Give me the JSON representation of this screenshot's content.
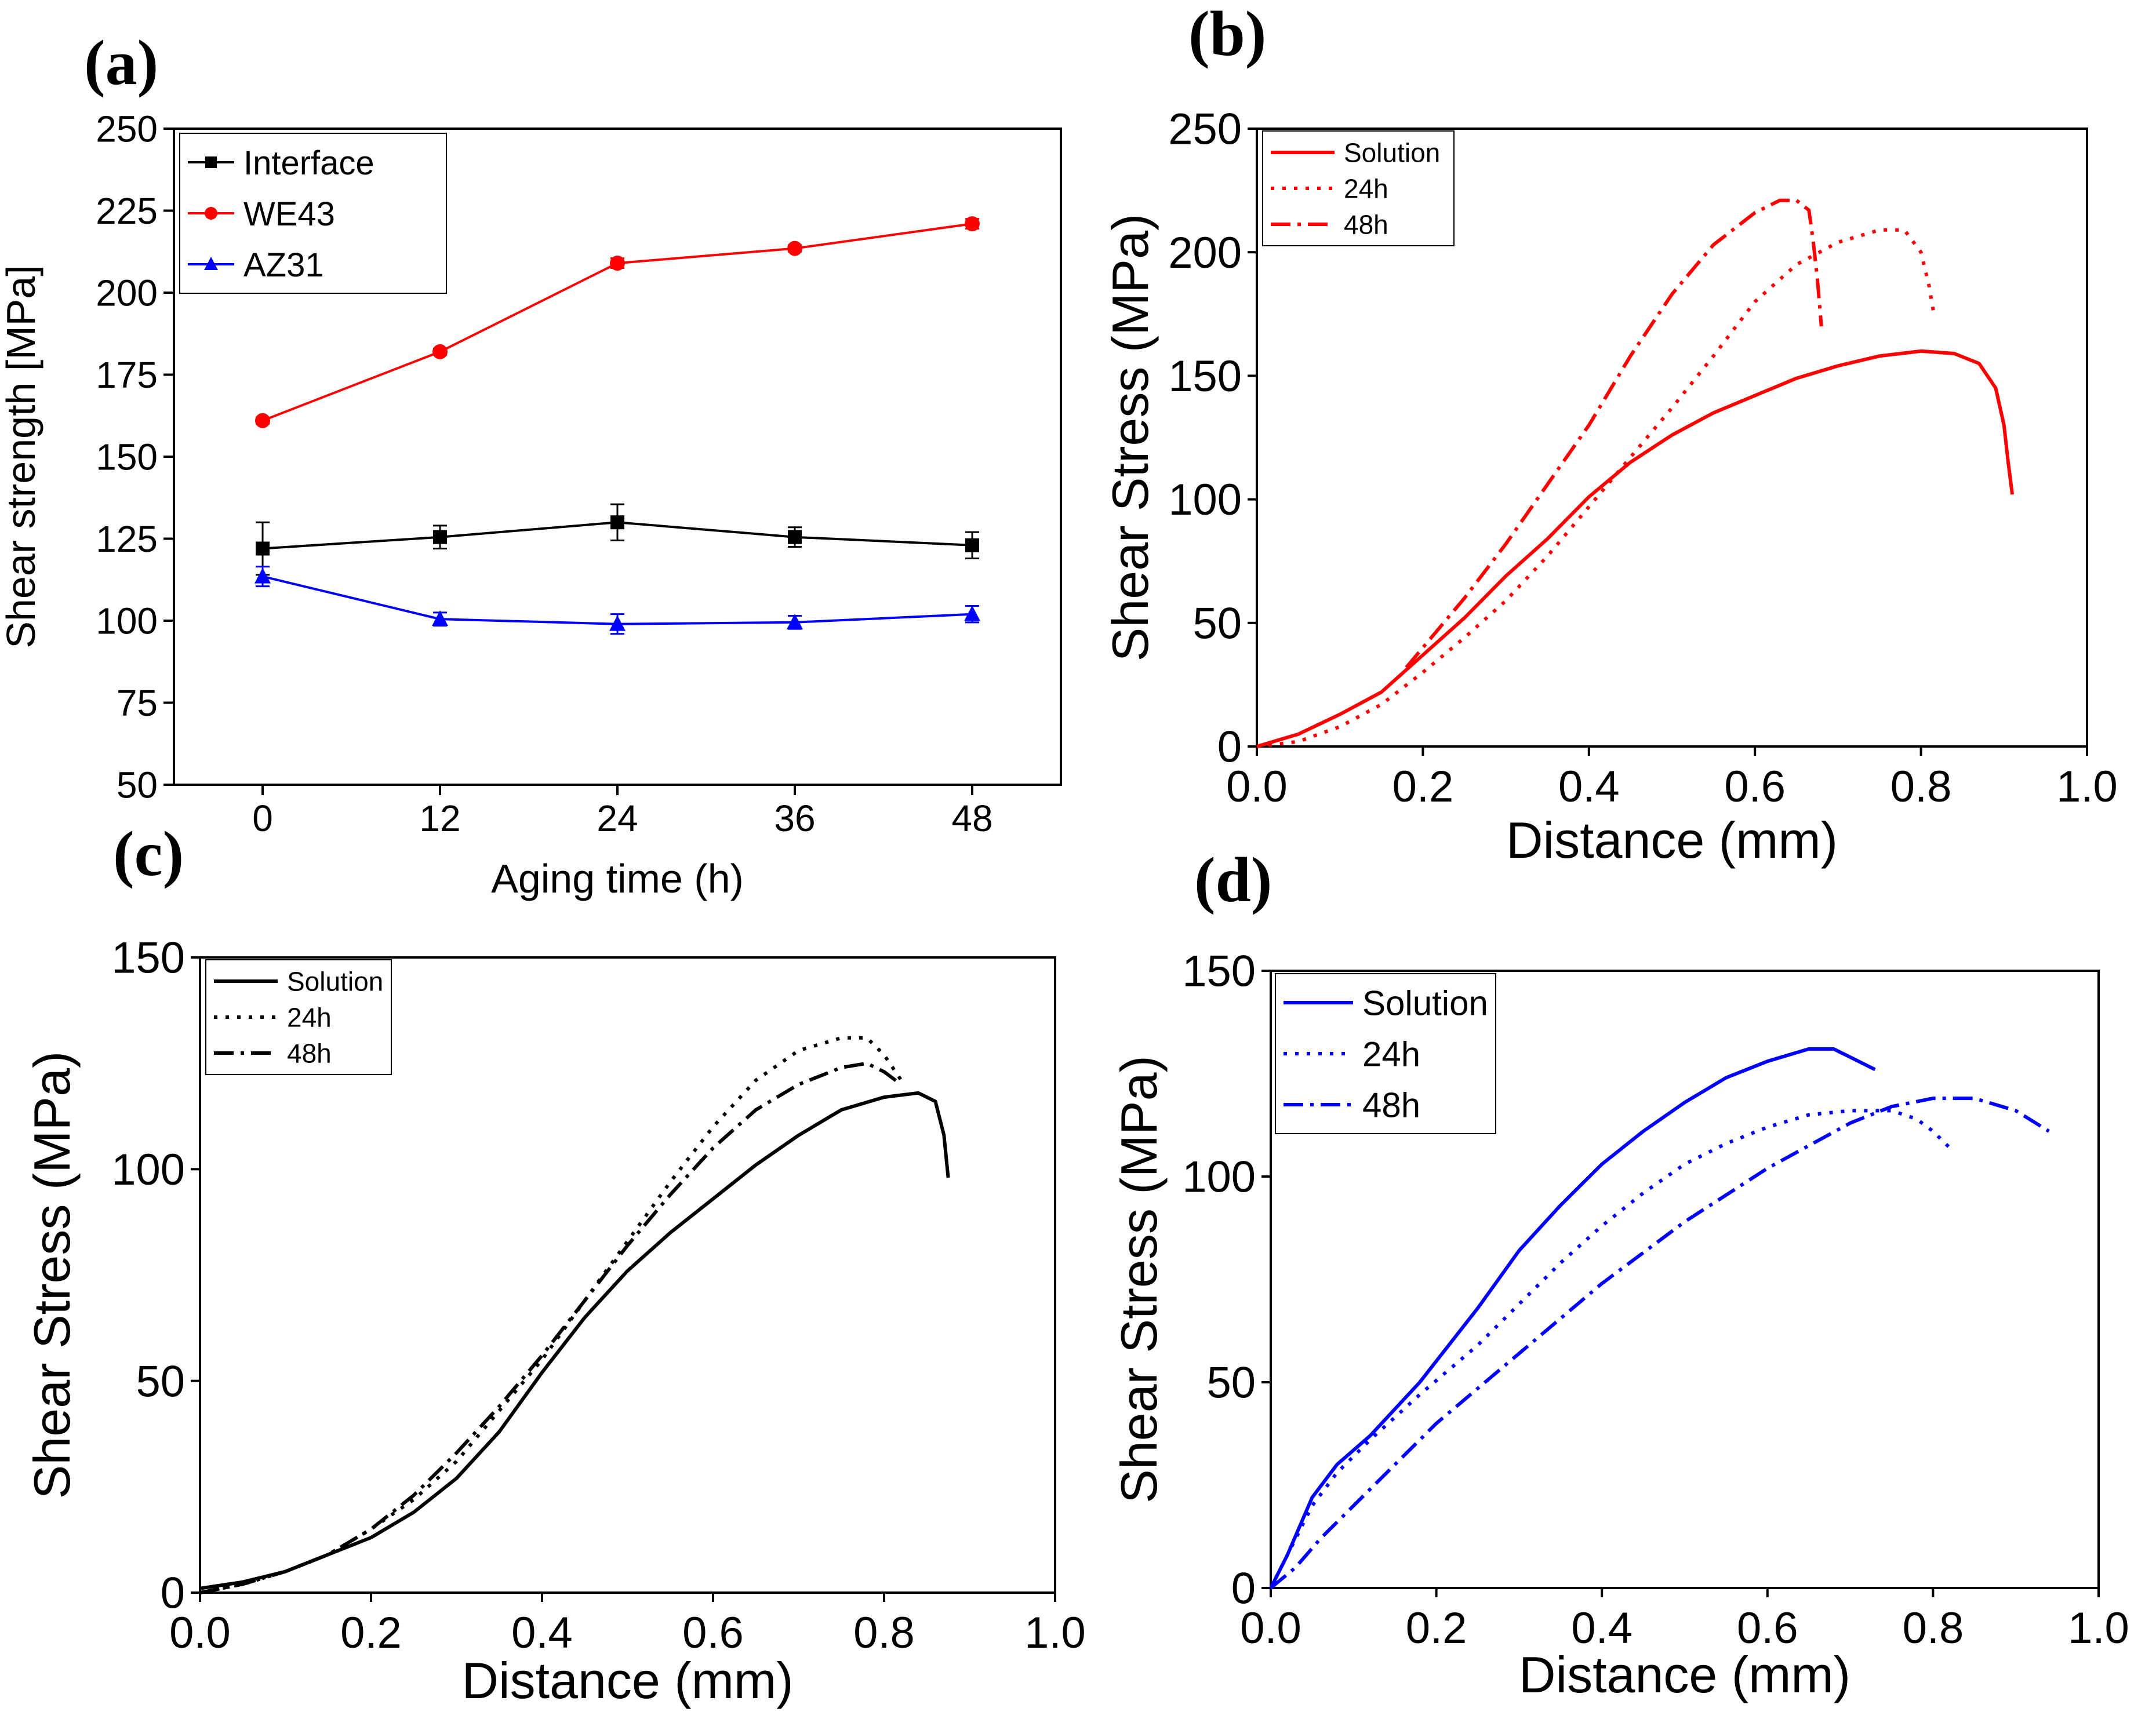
{
  "chart_data": [
    {
      "panel": "(a)",
      "type": "line",
      "xlabel": "Aging time (h)",
      "ylabel": "Shear strength  [MPa]",
      "xlim": [
        -6,
        54
      ],
      "ylim": [
        50,
        250
      ],
      "xticks": [
        0,
        12,
        24,
        36,
        48
      ],
      "xtick_labels": [
        "0",
        "12",
        "24",
        "36",
        "48"
      ],
      "yticks": [
        50,
        75,
        100,
        125,
        150,
        175,
        200,
        225,
        250
      ],
      "ytick_labels": [
        "50",
        "75",
        "100",
        "125",
        "150",
        "175",
        "200",
        "225",
        "250"
      ],
      "legend_position": "top-left",
      "series": [
        {
          "name": "Interface",
          "color": "#000000",
          "marker": "square",
          "x": [
            0,
            12,
            24,
            36,
            48
          ],
          "y": [
            122,
            125.5,
            130,
            125.5,
            123
          ],
          "err": [
            8,
            3.5,
            5.5,
            3,
            4
          ]
        },
        {
          "name": "WE43",
          "color": "#ff0000",
          "marker": "circle",
          "x": [
            0,
            12,
            24,
            36,
            48
          ],
          "y": [
            161,
            182,
            209,
            213.5,
            221
          ],
          "err": [
            1,
            1,
            1.5,
            1,
            1.5
          ]
        },
        {
          "name": "AZ31",
          "color": "#0000ff",
          "marker": "triangle",
          "x": [
            0,
            12,
            24,
            36,
            48
          ],
          "y": [
            113.5,
            100.5,
            99,
            99.5,
            102
          ],
          "err": [
            3,
            2,
            3,
            2,
            2.5
          ]
        }
      ]
    },
    {
      "panel": "(b)",
      "type": "line",
      "xlabel": "Distance (mm)",
      "ylabel": "Shear Stress (MPa)",
      "xlim": [
        0,
        1.0
      ],
      "ylim": [
        0,
        250
      ],
      "xticks": [
        0,
        0.2,
        0.4,
        0.6,
        0.8,
        1.0
      ],
      "xtick_labels": [
        "0.0",
        "0.2",
        "0.4",
        "0.6",
        "0.8",
        "1.0"
      ],
      "yticks": [
        0,
        50,
        100,
        150,
        200,
        250
      ],
      "ytick_labels": [
        "0",
        "50",
        "100",
        "150",
        "200",
        "250"
      ],
      "legend_position": "top-left",
      "series": [
        {
          "name": "Solution",
          "color": "#ff0000",
          "dash": "solid",
          "points": [
            [
              0,
              0
            ],
            [
              0.05,
              5
            ],
            [
              0.1,
              13
            ],
            [
              0.15,
              22
            ],
            [
              0.2,
              37
            ],
            [
              0.25,
              52
            ],
            [
              0.3,
              69
            ],
            [
              0.35,
              84
            ],
            [
              0.4,
              101
            ],
            [
              0.45,
              115
            ],
            [
              0.5,
              126
            ],
            [
              0.55,
              135
            ],
            [
              0.6,
              142
            ],
            [
              0.65,
              149
            ],
            [
              0.7,
              154
            ],
            [
              0.75,
              158
            ],
            [
              0.8,
              160
            ],
            [
              0.84,
              159
            ],
            [
              0.87,
              155
            ],
            [
              0.89,
              145
            ],
            [
              0.9,
              130
            ],
            [
              0.905,
              115
            ],
            [
              0.91,
              102
            ]
          ]
        },
        {
          "name": "24h",
          "color": "#ff0000",
          "dash": "dot",
          "points": [
            [
              0,
              0
            ],
            [
              0.05,
              2
            ],
            [
              0.1,
              8
            ],
            [
              0.15,
              17
            ],
            [
              0.2,
              30
            ],
            [
              0.25,
              44
            ],
            [
              0.3,
              59
            ],
            [
              0.35,
              77
            ],
            [
              0.4,
              97
            ],
            [
              0.45,
              117
            ],
            [
              0.5,
              137
            ],
            [
              0.55,
              158
            ],
            [
              0.6,
              180
            ],
            [
              0.65,
              195
            ],
            [
              0.7,
              204
            ],
            [
              0.75,
              209
            ],
            [
              0.78,
              209
            ],
            [
              0.8,
              200
            ],
            [
              0.81,
              186
            ],
            [
              0.815,
              176
            ]
          ]
        },
        {
          "name": "48h",
          "color": "#ff0000",
          "dash": "dashdot",
          "points": [
            [
              0.18,
              32
            ],
            [
              0.2,
              40
            ],
            [
              0.25,
              60
            ],
            [
              0.3,
              82
            ],
            [
              0.35,
              106
            ],
            [
              0.4,
              130
            ],
            [
              0.45,
              158
            ],
            [
              0.5,
              183
            ],
            [
              0.55,
              203
            ],
            [
              0.6,
              216
            ],
            [
              0.63,
              221
            ],
            [
              0.65,
              221
            ],
            [
              0.665,
              217
            ],
            [
              0.67,
              205
            ],
            [
              0.675,
              190
            ],
            [
              0.68,
              170
            ]
          ]
        }
      ]
    },
    {
      "panel": "(c)",
      "type": "line",
      "xlabel": "Distance (mm)",
      "ylabel": "Shear Stress (MPa)",
      "xlim": [
        0,
        1.0
      ],
      "ylim": [
        0,
        150
      ],
      "xticks": [
        0,
        0.2,
        0.4,
        0.6,
        0.8,
        1.0
      ],
      "xtick_labels": [
        "0.0",
        "0.2",
        "0.4",
        "0.6",
        "0.8",
        "1.0"
      ],
      "yticks": [
        0,
        50,
        100,
        150
      ],
      "ytick_labels": [
        "0",
        "50",
        "100",
        "150"
      ],
      "legend_position": "top-left",
      "series": [
        {
          "name": "Solution",
          "color": "#000000",
          "dash": "solid",
          "points": [
            [
              0,
              1
            ],
            [
              0.05,
              2.5
            ],
            [
              0.1,
              5
            ],
            [
              0.15,
              9
            ],
            [
              0.2,
              13
            ],
            [
              0.25,
              19
            ],
            [
              0.3,
              27
            ],
            [
              0.35,
              38
            ],
            [
              0.4,
              52
            ],
            [
              0.45,
              65
            ],
            [
              0.5,
              76
            ],
            [
              0.55,
              85
            ],
            [
              0.6,
              93
            ],
            [
              0.65,
              101
            ],
            [
              0.7,
              108
            ],
            [
              0.75,
              114
            ],
            [
              0.8,
              117
            ],
            [
              0.84,
              118
            ],
            [
              0.86,
              116
            ],
            [
              0.87,
              108
            ],
            [
              0.875,
              98
            ]
          ]
        },
        {
          "name": "24h",
          "color": "#000000",
          "dash": "dot",
          "points": [
            [
              0,
              0
            ],
            [
              0.05,
              2
            ],
            [
              0.1,
              5
            ],
            [
              0.15,
              9
            ],
            [
              0.2,
              15
            ],
            [
              0.25,
              22
            ],
            [
              0.3,
              31
            ],
            [
              0.35,
              43
            ],
            [
              0.4,
              55
            ],
            [
              0.45,
              69
            ],
            [
              0.5,
              83
            ],
            [
              0.55,
              97
            ],
            [
              0.6,
              110
            ],
            [
              0.65,
              121
            ],
            [
              0.7,
              128
            ],
            [
              0.75,
              131
            ],
            [
              0.78,
              131
            ],
            [
              0.8,
              127
            ],
            [
              0.82,
              121
            ]
          ]
        },
        {
          "name": "48h",
          "color": "#000000",
          "dash": "dashdot",
          "points": [
            [
              0,
              0
            ],
            [
              0.05,
              2
            ],
            [
              0.1,
              5
            ],
            [
              0.15,
              9
            ],
            [
              0.2,
              15
            ],
            [
              0.25,
              23
            ],
            [
              0.3,
              33
            ],
            [
              0.35,
              44
            ],
            [
              0.4,
              56
            ],
            [
              0.45,
              69
            ],
            [
              0.5,
              82
            ],
            [
              0.55,
              94
            ],
            [
              0.6,
              105
            ],
            [
              0.65,
              114
            ],
            [
              0.7,
              120
            ],
            [
              0.75,
              124
            ],
            [
              0.78,
              125
            ],
            [
              0.8,
              123
            ],
            [
              0.82,
              120
            ]
          ]
        }
      ]
    },
    {
      "panel": "(d)",
      "type": "line",
      "xlabel": "Distance (mm)",
      "ylabel": "Shear Stress (MPa)",
      "xlim": [
        0,
        1.0
      ],
      "ylim": [
        0,
        150
      ],
      "xticks": [
        0,
        0.2,
        0.4,
        0.6,
        0.8,
        1.0
      ],
      "xtick_labels": [
        "0.0",
        "0.2",
        "0.4",
        "0.6",
        "0.8",
        "1.0"
      ],
      "yticks": [
        0,
        50,
        100,
        150
      ],
      "ytick_labels": [
        "0",
        "50",
        "100",
        "150"
      ],
      "legend_position": "top-left",
      "series": [
        {
          "name": "Solution",
          "color": "#0000ff",
          "dash": "solid",
          "points": [
            [
              0,
              0
            ],
            [
              0.02,
              8
            ],
            [
              0.05,
              22
            ],
            [
              0.08,
              30
            ],
            [
              0.12,
              37
            ],
            [
              0.18,
              50
            ],
            [
              0.25,
              68
            ],
            [
              0.3,
              82
            ],
            [
              0.35,
              93
            ],
            [
              0.4,
              103
            ],
            [
              0.45,
              111
            ],
            [
              0.5,
              118
            ],
            [
              0.55,
              124
            ],
            [
              0.6,
              128
            ],
            [
              0.65,
              131
            ],
            [
              0.68,
              131
            ],
            [
              0.7,
              129
            ],
            [
              0.73,
              126
            ]
          ]
        },
        {
          "name": "24h",
          "color": "#0000ff",
          "dash": "dot",
          "points": [
            [
              0,
              0
            ],
            [
              0.02,
              8
            ],
            [
              0.05,
              20
            ],
            [
              0.08,
              28
            ],
            [
              0.12,
              36
            ],
            [
              0.18,
              47
            ],
            [
              0.25,
              59
            ],
            [
              0.3,
              69
            ],
            [
              0.35,
              79
            ],
            [
              0.4,
              88
            ],
            [
              0.45,
              96
            ],
            [
              0.5,
              103
            ],
            [
              0.55,
              108
            ],
            [
              0.6,
              112
            ],
            [
              0.65,
              115
            ],
            [
              0.7,
              116
            ],
            [
              0.75,
              116
            ],
            [
              0.78,
              114
            ],
            [
              0.8,
              111
            ],
            [
              0.82,
              107
            ]
          ]
        },
        {
          "name": "48h",
          "color": "#0000ff",
          "dash": "dashdot",
          "points": [
            [
              0,
              0
            ],
            [
              0.03,
              5
            ],
            [
              0.06,
              12
            ],
            [
              0.1,
              20
            ],
            [
              0.15,
              30
            ],
            [
              0.2,
              40
            ],
            [
              0.3,
              57
            ],
            [
              0.4,
              74
            ],
            [
              0.5,
              89
            ],
            [
              0.6,
              102
            ],
            [
              0.7,
              113
            ],
            [
              0.75,
              117
            ],
            [
              0.8,
              119
            ],
            [
              0.85,
              119
            ],
            [
              0.9,
              116
            ],
            [
              0.94,
              111
            ]
          ]
        }
      ]
    }
  ]
}
